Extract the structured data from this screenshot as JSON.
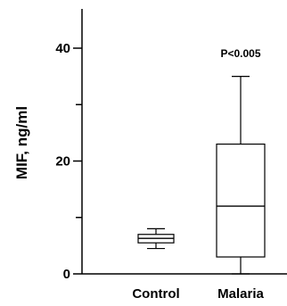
{
  "chart_data": {
    "type": "box",
    "title": "",
    "xlabel": "",
    "ylabel": "MIF, ng/ml",
    "ylim": [
      0,
      46
    ],
    "yticks": [
      0,
      20,
      40
    ],
    "ytick_labels": [
      "0",
      "20",
      "40"
    ],
    "categories": [
      "Control",
      "Malaria"
    ],
    "series": [
      {
        "category": "Control",
        "whisker_low": 4.5,
        "q1": 5.5,
        "median": 6.3,
        "q3": 7,
        "whisker_high": 8
      },
      {
        "category": "Malaria",
        "whisker_low": 0,
        "q1": 3,
        "median": 12,
        "q3": 23,
        "whisker_high": 35
      }
    ],
    "annotations": [
      {
        "category": "Malaria",
        "text": "P<0.005"
      }
    ],
    "grid": false,
    "legend": "none"
  }
}
